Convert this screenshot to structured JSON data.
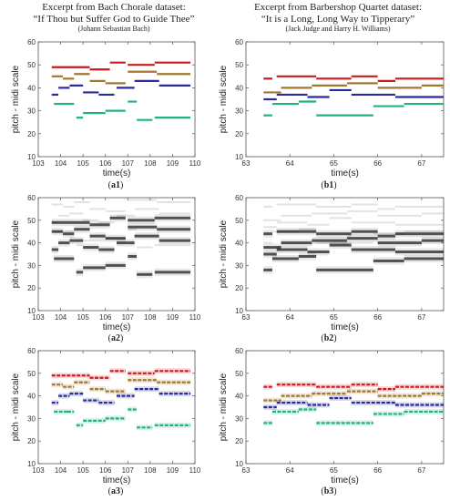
{
  "headers": {
    "left": {
      "line1": "Excerpt from Bach Chorale dataset:",
      "line2": "“If Thou but Suffer God to Guide Thee”",
      "line3": "(Johann Sebastian Bach)"
    },
    "right": {
      "line1": "Excerpt from Barbershop Quartet dataset:",
      "line2": "“It is a Long, Long Way to Tipperary”",
      "line3": "(Jack Judge and Harry H. Williams)"
    }
  },
  "captions": {
    "a1": {
      "open": "(",
      "id": "a1",
      "close": ")"
    },
    "b1": {
      "open": "(",
      "id": "b1",
      "close": ")"
    },
    "a2": {
      "open": "(",
      "id": "a2",
      "close": ")"
    },
    "b2": {
      "open": "(",
      "id": "b2",
      "close": ")"
    },
    "a3": {
      "open": "(",
      "id": "a3",
      "close": ")"
    },
    "b3": {
      "open": "(",
      "id": "b3",
      "close": ")"
    }
  },
  "colors": {
    "soprano": "#cc1a1a",
    "alto": "#a07830",
    "tenor": "#2a2a9a",
    "bass": "#22b08a",
    "salience": "#111111"
  },
  "chart_data": [
    {
      "id": "a1",
      "type": "scatter",
      "xlabel": "time(s)",
      "ylabel": "pitch - midi scale",
      "xlim": [
        103,
        110
      ],
      "ylim": [
        10,
        60
      ],
      "xticks": [
        103,
        104,
        105,
        106,
        107,
        108,
        109,
        110
      ],
      "yticks": [
        10,
        20,
        30,
        40,
        50,
        60
      ],
      "series": [
        {
          "voice": "soprano",
          "segments": [
            [
              103.6,
              105.3,
              49
            ],
            [
              105.3,
              106.2,
              48
            ],
            [
              106.2,
              106.9,
              51
            ],
            [
              107.0,
              108.2,
              50
            ],
            [
              108.2,
              109.8,
              51
            ]
          ]
        },
        {
          "voice": "alto",
          "segments": [
            [
              103.6,
              104.1,
              45
            ],
            [
              104.1,
              104.6,
              44
            ],
            [
              104.6,
              105.3,
              46
            ],
            [
              105.3,
              106.0,
              43
            ],
            [
              106.0,
              106.9,
              42
            ],
            [
              107.0,
              108.3,
              47
            ],
            [
              108.3,
              109.8,
              46
            ]
          ]
        },
        {
          "voice": "tenor",
          "segments": [
            [
              103.6,
              103.9,
              37
            ],
            [
              103.9,
              104.4,
              40
            ],
            [
              104.4,
              105.0,
              41
            ],
            [
              105.0,
              105.7,
              38
            ],
            [
              105.7,
              106.4,
              37
            ],
            [
              106.5,
              107.3,
              40
            ],
            [
              107.3,
              108.4,
              43
            ],
            [
              108.4,
              109.8,
              41
            ]
          ]
        },
        {
          "voice": "bass",
          "segments": [
            [
              103.7,
              104.3,
              33
            ],
            [
              104.3,
              104.6,
              33
            ],
            [
              104.7,
              105.0,
              27
            ],
            [
              105.0,
              106.0,
              29
            ],
            [
              106.0,
              106.9,
              30
            ],
            [
              107.0,
              107.4,
              34
            ],
            [
              107.4,
              108.1,
              26
            ],
            [
              108.2,
              109.8,
              27
            ]
          ]
        }
      ]
    },
    {
      "id": "b1",
      "type": "scatter",
      "xlabel": "time(s)",
      "ylabel": "pitch - midi scale",
      "xlim": [
        63,
        67.5
      ],
      "ylim": [
        10,
        60
      ],
      "xticks": [
        63,
        64,
        65,
        66,
        67
      ],
      "yticks": [
        10,
        20,
        30,
        40,
        50,
        60
      ],
      "series": [
        {
          "voice": "soprano",
          "segments": [
            [
              63.4,
              63.6,
              44
            ],
            [
              63.7,
              64.6,
              45
            ],
            [
              64.6,
              65.4,
              44
            ],
            [
              65.4,
              66.0,
              45
            ],
            [
              66.0,
              66.4,
              43
            ],
            [
              66.4,
              67.5,
              44
            ]
          ]
        },
        {
          "voice": "alto",
          "segments": [
            [
              63.4,
              63.8,
              38
            ],
            [
              63.8,
              64.5,
              40
            ],
            [
              64.5,
              65.3,
              41
            ],
            [
              65.3,
              66.0,
              42
            ],
            [
              66.0,
              67.0,
              40
            ],
            [
              67.0,
              67.5,
              41
            ]
          ]
        },
        {
          "voice": "tenor",
          "segments": [
            [
              63.4,
              63.7,
              35
            ],
            [
              63.7,
              64.4,
              37
            ],
            [
              64.4,
              64.9,
              36
            ],
            [
              64.9,
              65.4,
              39
            ],
            [
              65.4,
              66.4,
              37
            ],
            [
              66.4,
              67.5,
              36
            ]
          ]
        },
        {
          "voice": "bass",
          "segments": [
            [
              63.4,
              63.6,
              28
            ],
            [
              63.6,
              64.2,
              33
            ],
            [
              64.2,
              64.6,
              34
            ],
            [
              64.6,
              65.9,
              28
            ],
            [
              65.9,
              66.6,
              32
            ],
            [
              66.6,
              67.5,
              33
            ]
          ]
        }
      ]
    },
    {
      "id": "a2",
      "type": "heatmap",
      "xlabel": "time(s)",
      "ylabel": "pitch - midi scale",
      "xlim": [
        103,
        110
      ],
      "ylim": [
        10,
        60
      ],
      "xticks": [
        103,
        104,
        105,
        106,
        107,
        108,
        109,
        110
      ],
      "yticks": [
        10,
        20,
        30,
        40,
        50,
        60
      ]
    },
    {
      "id": "b2",
      "type": "heatmap",
      "xlabel": "time(s)",
      "ylabel": "pitch - midi scale",
      "xlim": [
        63,
        67.5
      ],
      "ylim": [
        10,
        60
      ],
      "xticks": [
        63,
        64,
        65,
        66,
        67
      ],
      "yticks": [
        10,
        20,
        30,
        40,
        50,
        60
      ]
    },
    {
      "id": "a3",
      "type": "scatter",
      "xlabel": "time(s)",
      "ylabel": "pitch - midi scale",
      "xlim": [
        103,
        110
      ],
      "ylim": [
        10,
        60
      ],
      "xticks": [
        103,
        104,
        105,
        106,
        107,
        108,
        109,
        110
      ],
      "yticks": [
        10,
        20,
        30,
        40,
        50,
        60
      ]
    },
    {
      "id": "b3",
      "type": "scatter",
      "xlabel": "time(s)",
      "ylabel": "pitch - midi scale",
      "xlim": [
        63,
        67.5
      ],
      "ylim": [
        10,
        60
      ],
      "xticks": [
        63,
        64,
        65,
        66,
        67
      ],
      "yticks": [
        10,
        20,
        30,
        40,
        50,
        60
      ]
    }
  ]
}
